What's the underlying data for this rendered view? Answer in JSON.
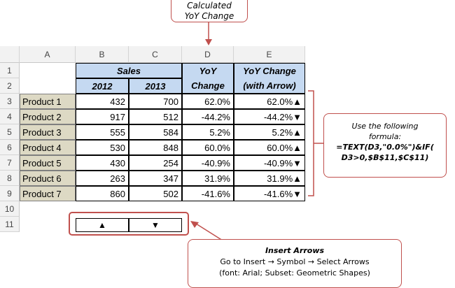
{
  "callouts": {
    "top_line1": "Calculated",
    "top_line2": "YoY Change",
    "right_line1": "Use the following",
    "right_line2": "formula:",
    "right_formula1": "=TEXT(D3,\"0.0%\")&IF(",
    "right_formula2": "D3>0,$B$11,$C$11)",
    "bottom_title": "Insert Arrows",
    "bottom_line1": "Go to Insert → Symbol → Select Arrows",
    "bottom_line2": "(font: Arial; Subset: Geometric Shapes)"
  },
  "columns": [
    "A",
    "B",
    "C",
    "D",
    "E"
  ],
  "rows": [
    "1",
    "2",
    "3",
    "4",
    "5",
    "6",
    "7",
    "8",
    "9",
    "10",
    "11"
  ],
  "headers": {
    "sales": "Sales",
    "y2012": "2012",
    "y2013": "2013",
    "yoy_line1": "YoY",
    "yoy_line2": "Change",
    "arrow_line1": "YoY Change",
    "arrow_line2": "(with Arrow)"
  },
  "data": [
    {
      "product": "Product 1",
      "v2012": "432",
      "v2013": "700",
      "yoy": "62.0%",
      "arrow": "62.0%▲"
    },
    {
      "product": "Product 2",
      "v2012": "917",
      "v2013": "512",
      "yoy": "-44.2%",
      "arrow": "-44.2%▼"
    },
    {
      "product": "Product 3",
      "v2012": "555",
      "v2013": "584",
      "yoy": "5.2%",
      "arrow": "5.2%▲"
    },
    {
      "product": "Product 4",
      "v2012": "530",
      "v2013": "848",
      "yoy": "60.0%",
      "arrow": "60.0%▲"
    },
    {
      "product": "Product 5",
      "v2012": "430",
      "v2013": "254",
      "yoy": "-40.9%",
      "arrow": "-40.9%▼"
    },
    {
      "product": "Product 6",
      "v2012": "263",
      "v2013": "347",
      "yoy": "31.9%",
      "arrow": "31.9%▲"
    },
    {
      "product": "Product 7",
      "v2012": "860",
      "v2013": "502",
      "yoy": "-41.6%",
      "arrow": "-41.6%▼"
    }
  ],
  "arrows": {
    "up": "▲",
    "down": "▼"
  },
  "colors": {
    "accent": "#c0504d",
    "header_blue": "#c5d9f1",
    "product_tan": "#ddd9c4"
  }
}
